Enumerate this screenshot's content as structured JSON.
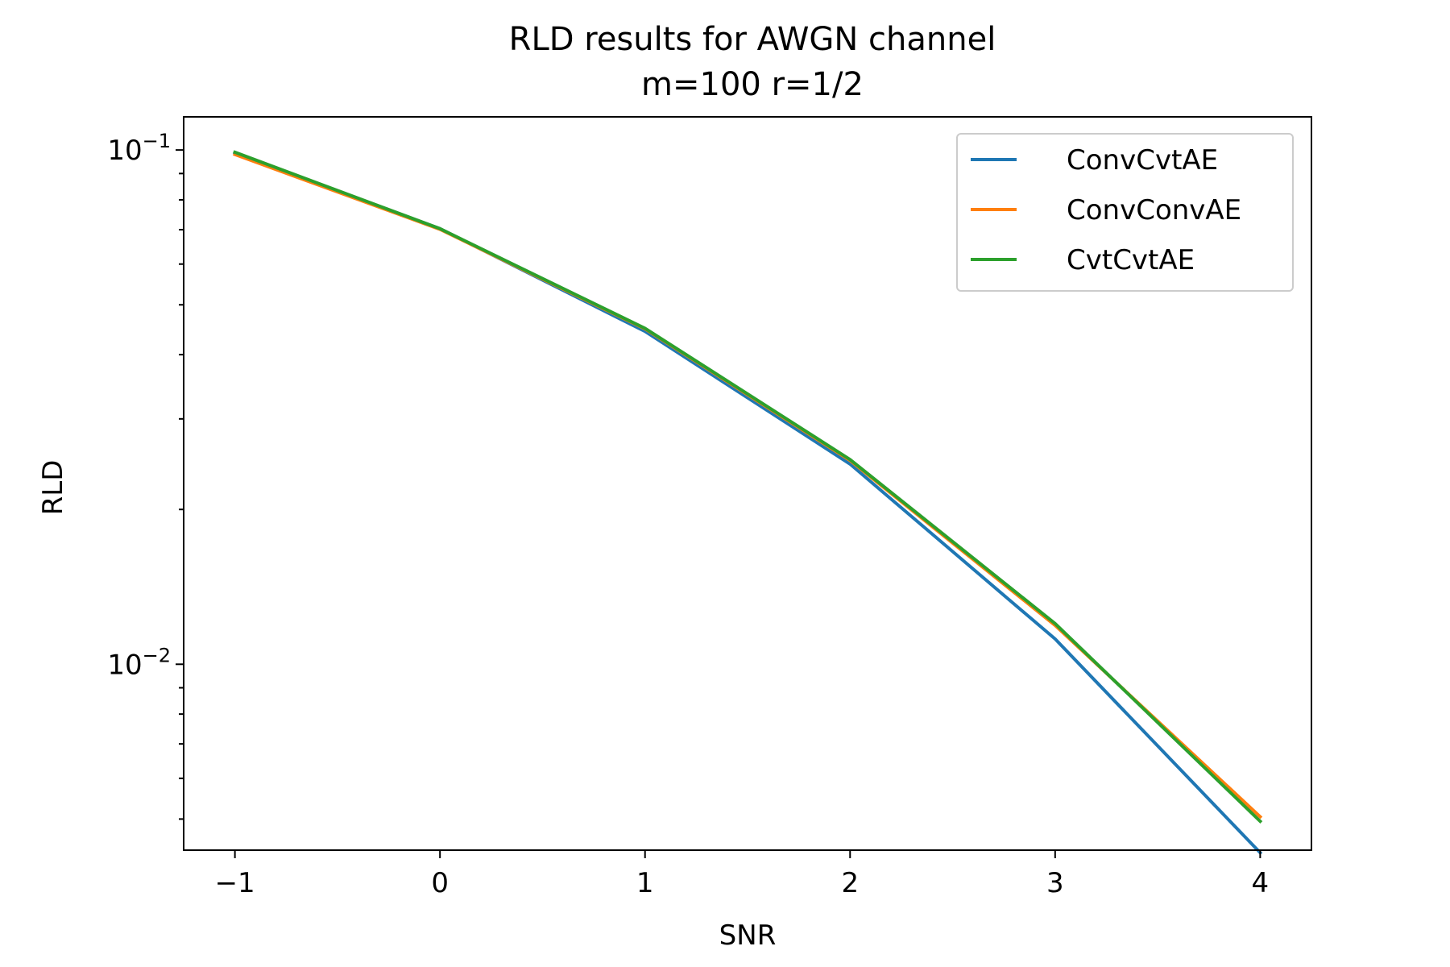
{
  "chart_data": {
    "type": "line",
    "title": "RLD results for AWGN channel",
    "subtitle": "m=100 r=1/2",
    "xlabel": "SNR",
    "ylabel": "RLD",
    "yscale": "log",
    "xlim": [
      -1.25,
      4.25
    ],
    "ylim": [
      0.00435,
      0.116
    ],
    "grid": false,
    "legend_position": "top-right",
    "x": [
      -1,
      0,
      1,
      2,
      3,
      4
    ],
    "xticks": [
      {
        "value": -1,
        "label": "−1"
      },
      {
        "value": 0,
        "label": "0"
      },
      {
        "value": 1,
        "label": "1"
      },
      {
        "value": 2,
        "label": "2"
      },
      {
        "value": 3,
        "label": "3"
      },
      {
        "value": 4,
        "label": "4"
      }
    ],
    "yticks_major": [
      {
        "value": 0.1,
        "base": "10",
        "exp": "−1"
      },
      {
        "value": 0.01,
        "base": "10",
        "exp": "−2"
      }
    ],
    "yticks_minor": [
      0.005,
      0.006,
      0.007,
      0.008,
      0.009,
      0.02,
      0.03,
      0.04,
      0.05,
      0.06,
      0.07,
      0.08,
      0.09
    ],
    "series": [
      {
        "name": "ConvCvtAE",
        "color": "#1f77b4",
        "values": [
          0.0987,
          0.0703,
          0.0444,
          0.0245,
          0.0112,
          0.0043
        ]
      },
      {
        "name": "ConvConvAE",
        "color": "#ff7f0e",
        "values": [
          0.098,
          0.0701,
          0.0449,
          0.0249,
          0.0119,
          0.00505
        ]
      },
      {
        "name": "CvtCvtAE",
        "color": "#2ca02c",
        "values": [
          0.099,
          0.0703,
          0.045,
          0.025,
          0.012,
          0.00495
        ]
      }
    ]
  }
}
